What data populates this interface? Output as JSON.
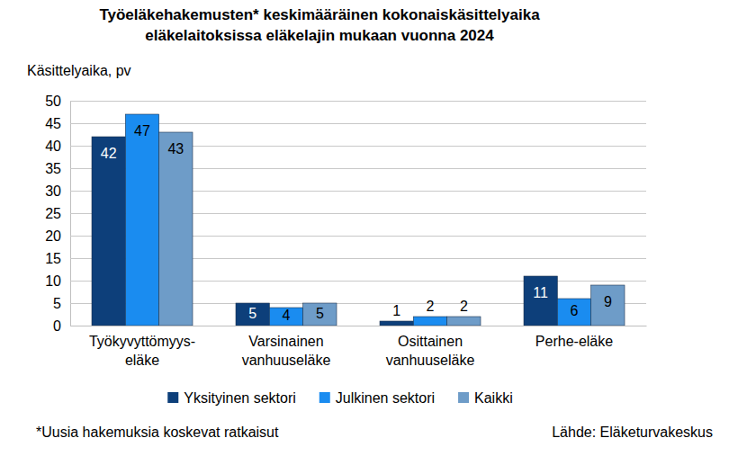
{
  "chart_data": {
    "type": "bar",
    "title": "Työeläkehakemusten* keskimääräinen kokonaiskäsittelyaika\neläkelaitoksissa eläkelajin mukaan vuonna 2024",
    "y_label": "Käsittelyaika, pv",
    "categories": [
      "Työkyvyttömyys-\neläke",
      "Varsinainen\nvanhuuseläke",
      "Osittainen\nvanhuuseläke",
      "Perhe-eläke"
    ],
    "series": [
      {
        "name": "Yksityinen sektori",
        "color": "#0d3f7a",
        "values": [
          42,
          5,
          1,
          11
        ]
      },
      {
        "name": "Julkinen sektori",
        "color": "#1a8cf0",
        "values": [
          47,
          4,
          2,
          6
        ]
      },
      {
        "name": "Kaikki",
        "color": "#6e9cc8",
        "values": [
          43,
          5,
          2,
          9
        ]
      }
    ],
    "ylim": [
      0,
      50
    ],
    "yticks": [
      0,
      5,
      10,
      15,
      20,
      25,
      30,
      35,
      40,
      45,
      50
    ],
    "grid": true,
    "data_labels": true,
    "legend": "bottom",
    "note": "*Uusia hakemuksia koskevat ratkaisut",
    "source": "Lähde: Eläketurvakeskus"
  }
}
